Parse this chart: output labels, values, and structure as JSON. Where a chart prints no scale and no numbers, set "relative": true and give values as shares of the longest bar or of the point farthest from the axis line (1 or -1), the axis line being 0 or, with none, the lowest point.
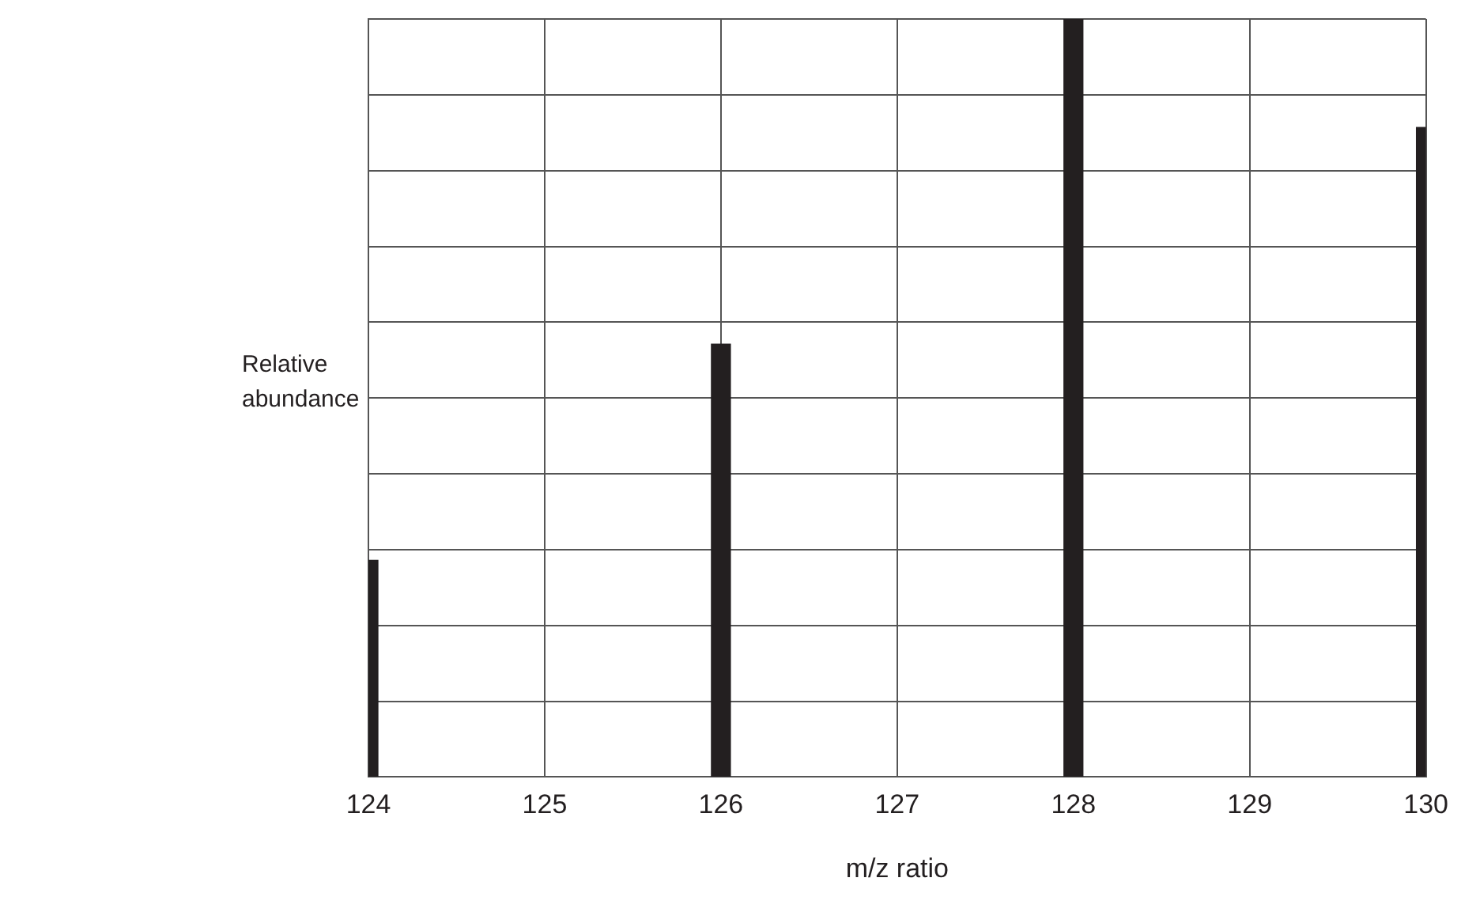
{
  "chart_data": {
    "type": "bar",
    "xlabel": "m/z ratio",
    "ylabel": "Relative abundance",
    "x": [
      124,
      126,
      128,
      130
    ],
    "values": [
      0.286,
      0.571,
      1,
      0.857
    ],
    "color": "#231f20",
    "relative": true,
    "xlim": [
      124,
      130
    ],
    "xticks": [
      124,
      125,
      126,
      127,
      128,
      129,
      130
    ],
    "grid": true,
    "tick_labels": "x"
  }
}
